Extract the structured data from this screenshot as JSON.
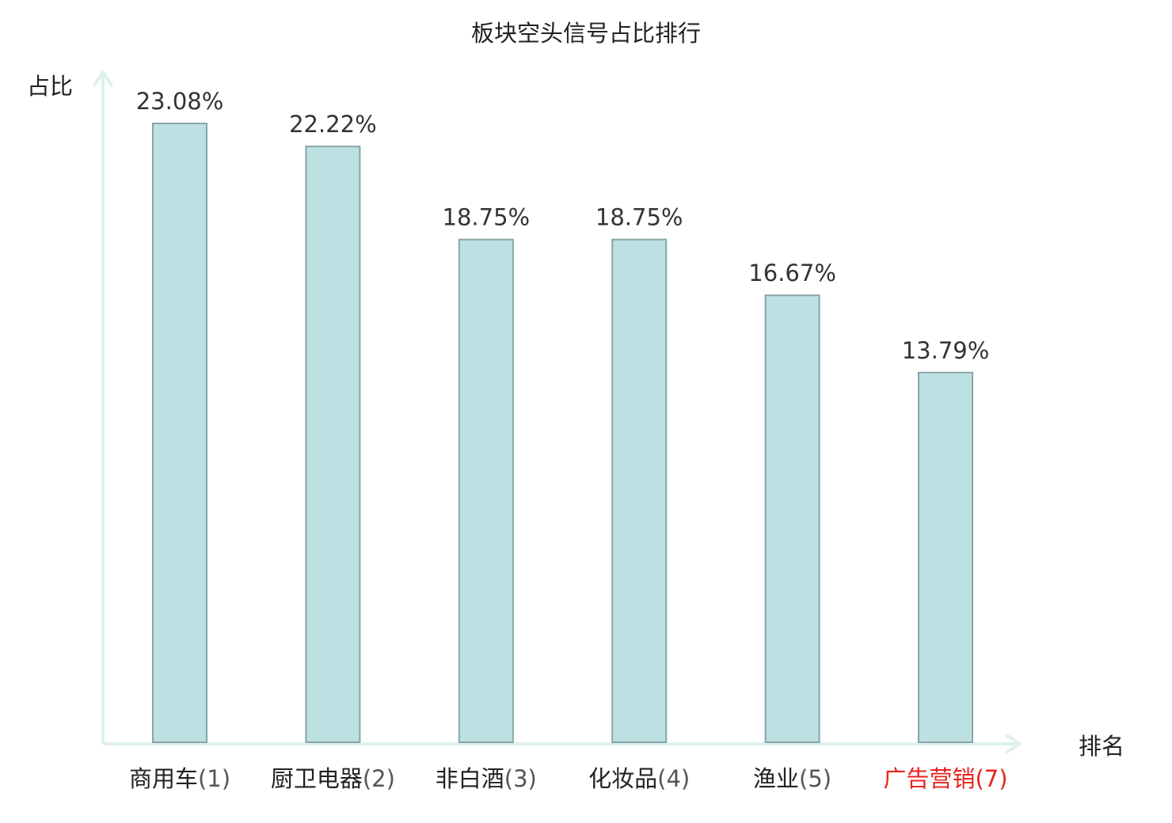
{
  "chart_data": {
    "type": "bar",
    "title": "板块空头信号占比排行",
    "xlabel": "排名",
    "ylabel": "占比",
    "categories": [
      {
        "name": "商用车",
        "rank": "(1)",
        "highlight": false
      },
      {
        "name": "厨卫电器",
        "rank": "(2)",
        "highlight": false
      },
      {
        "name": "非白酒",
        "rank": "(3)",
        "highlight": false
      },
      {
        "name": "化妆品",
        "rank": "(4)",
        "highlight": false
      },
      {
        "name": "渔业",
        "rank": "(5)",
        "highlight": false
      },
      {
        "name": "广告营销",
        "rank": "(7)",
        "highlight": true
      }
    ],
    "values": [
      23.08,
      22.22,
      18.75,
      18.75,
      16.67,
      13.79
    ],
    "value_labels": [
      "23.08%",
      "22.22%",
      "18.75%",
      "18.75%",
      "16.67%",
      "13.79%"
    ],
    "ylim": [
      0,
      23.08
    ],
    "grid": false,
    "legend": "none"
  },
  "colors": {
    "bar_fill": "#bde0e3",
    "bar_stroke": "#86a6a8",
    "axis": "#dff1ef",
    "text": "#222222",
    "highlight": "#e8231c",
    "rank_text": "#555555"
  }
}
